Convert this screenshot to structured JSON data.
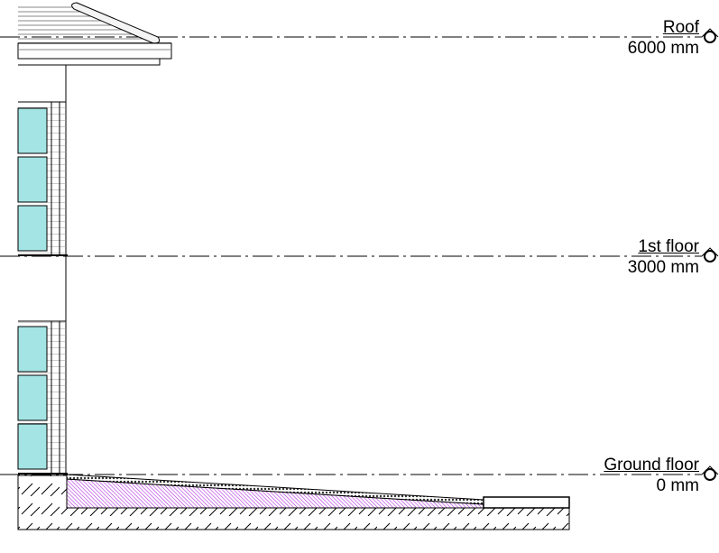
{
  "levels": [
    {
      "name": "Roof",
      "elevation": "6000 mm"
    },
    {
      "name": "1st floor",
      "elevation": "3000 mm"
    },
    {
      "name": "Ground floor",
      "elevation": "0 mm"
    }
  ],
  "colors": {
    "glass": "#a4e4e4",
    "ramp_hatch": "#b030e0",
    "line": "#000000"
  }
}
